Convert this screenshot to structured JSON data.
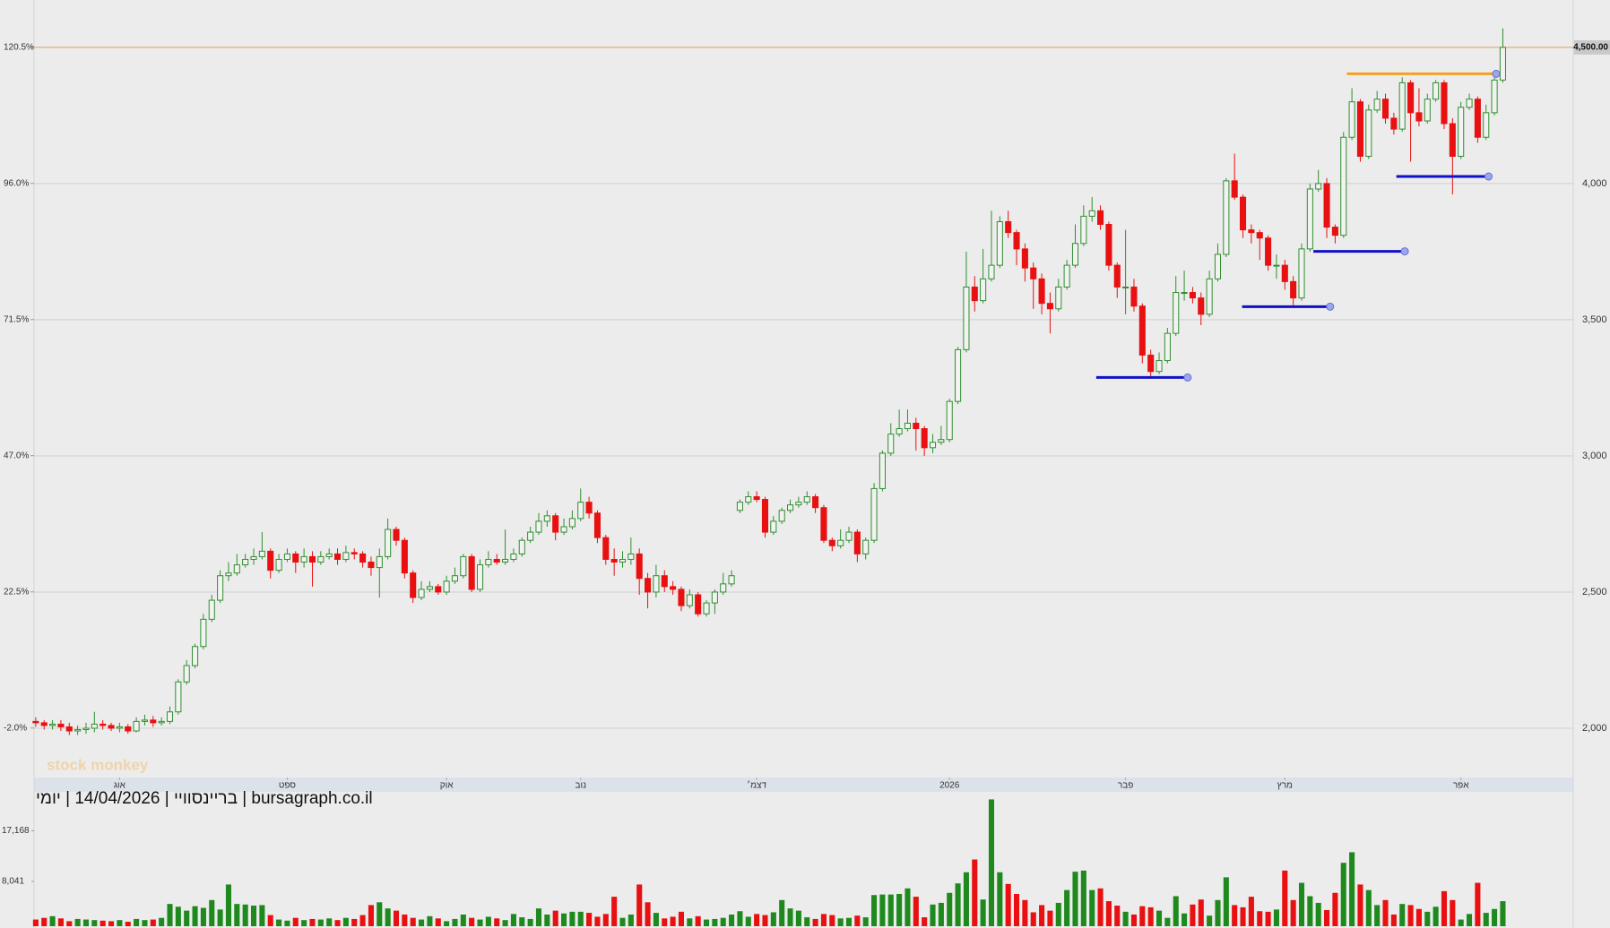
{
  "chart_data": {
    "type": "candlestick",
    "caption": "bursagraph.co.il | בריינסוויי | 14/04/2026 | יומי",
    "watermark": "stock monkey",
    "up_color": "#2f8f2f",
    "down_color": "#e81010",
    "grid": true,
    "xlim": [
      -0.2,
      183.4
    ],
    "xticks": [
      {
        "value": 10,
        "label": "אוג"
      },
      {
        "value": 30,
        "label": "ספט"
      },
      {
        "value": 49,
        "label": "אוק"
      },
      {
        "value": 65,
        "label": "נוב"
      },
      {
        "value": 86,
        "label": "דצמ׳"
      },
      {
        "value": 109,
        "label": "2026"
      },
      {
        "value": 130,
        "label": "פבר"
      },
      {
        "value": 149,
        "label": "מרץ"
      },
      {
        "value": 170,
        "label": "אפר"
      }
    ],
    "ylim": [
      1819,
      4674
    ],
    "yticks": [
      {
        "value": 2000,
        "label": "2,000"
      },
      {
        "value": 2500,
        "label": "2,500"
      },
      {
        "value": 3000,
        "label": "3,000"
      },
      {
        "value": 3500,
        "label": "3,500"
      },
      {
        "value": 4000,
        "label": "4,000"
      }
    ],
    "y2lim": [
      -10.9,
      129.0
    ],
    "y2ticks": [
      {
        "value": -2.0,
        "label": "-2.0%"
      },
      {
        "value": 22.5,
        "label": "22.5%"
      },
      {
        "value": 47.0,
        "label": "47.0%"
      },
      {
        "value": 71.5,
        "label": "71.5%"
      },
      {
        "value": 96.0,
        "label": "96.0%"
      },
      {
        "value": 120.5,
        "label": "120.5%"
      }
    ],
    "last_price": {
      "value": 4500,
      "label": "4,500.00",
      "color": "#e0a060"
    },
    "levels": [
      {
        "price": 3288,
        "x0": 126.5,
        "x1": 137.4,
        "color": "#1010c8"
      },
      {
        "price": 3548,
        "x0": 143.9,
        "x1": 154.4,
        "color": "#1010c8"
      },
      {
        "price": 3751,
        "x0": 152.4,
        "x1": 163.3,
        "color": "#1010c8"
      },
      {
        "price": 4026,
        "x0": 162.3,
        "x1": 173.3,
        "color": "#1010c8"
      },
      {
        "price": 4403,
        "x0": 156.4,
        "x1": 174.2,
        "color": "#f5a020"
      }
    ],
    "open": [
      2025,
      2020,
      2010,
      2015,
      2005,
      1990,
      1995,
      2000,
      2015,
      2010,
      2000,
      2005,
      1990,
      2025,
      2030,
      2020,
      2025,
      2060,
      2170,
      2230,
      2300,
      2400,
      2470,
      2560,
      2570,
      2600,
      2620,
      2630,
      2650,
      2580,
      2620,
      2640,
      2610,
      2630,
      2610,
      2630,
      2640,
      2620,
      2645,
      2640,
      2610,
      2590,
      2630,
      2730,
      2690,
      2570,
      2480,
      2510,
      2520,
      2500,
      2540,
      2560,
      2630,
      2510,
      2600,
      2620,
      2610,
      2620,
      2640,
      2690,
      2720,
      2760,
      2780,
      2720,
      2740,
      2770,
      2830,
      2790,
      2700,
      2620,
      2610,
      2620,
      2640,
      2550,
      2500,
      2560,
      2520,
      2510,
      2450,
      2490,
      2420,
      2460,
      2500,
      2530,
      2800,
      2830,
      2850,
      2840,
      2720,
      2760,
      2800,
      2820,
      2830,
      2850,
      2810,
      2690,
      2670,
      2690,
      2720,
      2640,
      2690,
      2880,
      3010,
      3080,
      3100,
      3120,
      3100,
      3030,
      3050,
      3060,
      3200,
      3390,
      3620,
      3570,
      3650,
      3700,
      3860,
      3820,
      3760,
      3690,
      3650,
      3560,
      3540,
      3620,
      3700,
      3780,
      3880,
      3900,
      3850,
      3700,
      3620,
      3620,
      3550,
      3370,
      3310,
      3350,
      3450,
      3600,
      3600,
      3580,
      3520,
      3650,
      3740,
      4010,
      3950,
      3830,
      3820,
      3800,
      3700,
      3700,
      3640,
      3580,
      3760,
      3980,
      4000,
      3840,
      3810,
      4170,
      4300,
      4100,
      4270,
      4310,
      4240,
      4200,
      4370,
      4260,
      4230,
      4310,
      4370,
      4220,
      4100,
      4280,
      4310,
      4170,
      4260,
      4380
    ],
    "high": [
      2040,
      2030,
      2030,
      2030,
      2020,
      2010,
      2020,
      2060,
      2030,
      2020,
      2020,
      2015,
      2040,
      2050,
      2045,
      2040,
      2080,
      2180,
      2250,
      2310,
      2420,
      2490,
      2580,
      2610,
      2640,
      2640,
      2660,
      2720,
      2660,
      2640,
      2660,
      2650,
      2660,
      2650,
      2650,
      2660,
      2660,
      2670,
      2660,
      2650,
      2630,
      2660,
      2770,
      2740,
      2700,
      2580,
      2540,
      2540,
      2530,
      2560,
      2590,
      2640,
      2640,
      2620,
      2650,
      2640,
      2730,
      2660,
      2700,
      2740,
      2790,
      2800,
      2790,
      2770,
      2800,
      2880,
      2850,
      2800,
      2710,
      2660,
      2650,
      2700,
      2660,
      2570,
      2600,
      2580,
      2540,
      2520,
      2510,
      2500,
      2470,
      2510,
      2570,
      2580,
      2840,
      2870,
      2870,
      2850,
      2780,
      2810,
      2840,
      2850,
      2870,
      2860,
      2820,
      2700,
      2730,
      2740,
      2730,
      2700,
      2900,
      3020,
      3120,
      3170,
      3170,
      3140,
      3110,
      3080,
      3110,
      3210,
      3400,
      3750,
      3660,
      3760,
      3900,
      3880,
      3900,
      3830,
      3780,
      3710,
      3670,
      3600,
      3650,
      3720,
      3850,
      3920,
      3950,
      3920,
      3860,
      3710,
      3830,
      3650,
      3560,
      3390,
      3380,
      3470,
      3660,
      3680,
      3620,
      3600,
      3680,
      3780,
      4020,
      4110,
      3960,
      3850,
      3830,
      3810,
      3740,
      3720,
      3660,
      3780,
      4000,
      4050,
      4020,
      3850,
      4190,
      4350,
      4310,
      4290,
      4340,
      4330,
      4260,
      4390,
      4380,
      4350,
      4330,
      4380,
      4380,
      4240,
      4300,
      4330,
      4320,
      4290,
      4400,
      4570
    ],
    "low": [
      2005,
      1995,
      1995,
      1990,
      1975,
      1975,
      1980,
      1985,
      1995,
      1990,
      1985,
      1980,
      1985,
      2010,
      2005,
      2010,
      2015,
      2050,
      2160,
      2220,
      2290,
      2390,
      2460,
      2540,
      2560,
      2590,
      2600,
      2620,
      2550,
      2570,
      2610,
      2570,
      2590,
      2520,
      2600,
      2620,
      2600,
      2610,
      2620,
      2590,
      2560,
      2480,
      2620,
      2670,
      2550,
      2460,
      2470,
      2500,
      2490,
      2490,
      2530,
      2550,
      2500,
      2500,
      2590,
      2600,
      2600,
      2610,
      2630,
      2680,
      2710,
      2740,
      2690,
      2710,
      2730,
      2760,
      2770,
      2680,
      2600,
      2560,
      2590,
      2600,
      2490,
      2440,
      2480,
      2500,
      2490,
      2430,
      2440,
      2410,
      2410,
      2420,
      2490,
      2520,
      2790,
      2820,
      2830,
      2700,
      2710,
      2750,
      2790,
      2810,
      2820,
      2790,
      2680,
      2650,
      2660,
      2680,
      2610,
      2620,
      2680,
      2870,
      3000,
      3070,
      3090,
      3020,
      3000,
      3010,
      3040,
      3050,
      3190,
      3380,
      3530,
      3560,
      3640,
      3690,
      3800,
      3700,
      3640,
      3540,
      3520,
      3450,
      3530,
      3610,
      3690,
      3770,
      3860,
      3830,
      3680,
      3580,
      3520,
      3530,
      3340,
      3290,
      3300,
      3340,
      3440,
      3570,
      3560,
      3480,
      3510,
      3640,
      3730,
      3940,
      3800,
      3780,
      3720,
      3680,
      3650,
      3610,
      3550,
      3570,
      3750,
      3970,
      3800,
      3780,
      3800,
      4160,
      4080,
      4090,
      4260,
      4220,
      4180,
      4190,
      4080,
      4210,
      4220,
      4300,
      4200,
      3960,
      4090,
      4270,
      4150,
      4160,
      4250,
      4370
    ],
    "close": [
      2020,
      2010,
      2015,
      2005,
      1990,
      1995,
      2000,
      2015,
      2010,
      2000,
      2005,
      1990,
      2025,
      2030,
      2020,
      2025,
      2060,
      2170,
      2230,
      2300,
      2400,
      2470,
      2560,
      2570,
      2600,
      2620,
      2630,
      2650,
      2580,
      2620,
      2640,
      2610,
      2630,
      2610,
      2630,
      2640,
      2620,
      2645,
      2640,
      2610,
      2590,
      2630,
      2730,
      2690,
      2570,
      2480,
      2510,
      2520,
      2500,
      2540,
      2560,
      2630,
      2510,
      2600,
      2620,
      2610,
      2620,
      2640,
      2690,
      2720,
      2760,
      2780,
      2720,
      2740,
      2770,
      2830,
      2790,
      2700,
      2620,
      2610,
      2620,
      2640,
      2550,
      2500,
      2560,
      2520,
      2510,
      2450,
      2490,
      2420,
      2460,
      2500,
      2530,
      2560,
      2830,
      2850,
      2840,
      2720,
      2760,
      2800,
      2820,
      2830,
      2850,
      2810,
      2690,
      2670,
      2690,
      2720,
      2640,
      2690,
      2880,
      3010,
      3080,
      3100,
      3120,
      3100,
      3030,
      3050,
      3060,
      3200,
      3390,
      3620,
      3570,
      3650,
      3700,
      3860,
      3820,
      3760,
      3690,
      3650,
      3560,
      3540,
      3620,
      3700,
      3780,
      3880,
      3900,
      3850,
      3700,
      3620,
      3620,
      3550,
      3370,
      3310,
      3350,
      3450,
      3600,
      3600,
      3580,
      3520,
      3650,
      3740,
      4010,
      3950,
      3830,
      3820,
      3800,
      3700,
      3700,
      3640,
      3580,
      3760,
      3980,
      4000,
      3840,
      3810,
      4170,
      4300,
      4100,
      4270,
      4310,
      4240,
      4200,
      4370,
      4260,
      4230,
      4310,
      4370,
      4220,
      4100,
      4280,
      4310,
      4170,
      4260,
      4380,
      4500
    ],
    "volume": [
      1200,
      1500,
      1800,
      1400,
      900,
      1300,
      1200,
      1100,
      1000,
      900,
      1100,
      800,
      1300,
      1100,
      1200,
      1500,
      4000,
      3500,
      2800,
      3600,
      3300,
      4700,
      3000,
      7500,
      4000,
      3900,
      3700,
      3800,
      2000,
      1200,
      1000,
      1500,
      1100,
      1300,
      1200,
      1400,
      1100,
      1500,
      1300,
      2000,
      3800,
      4300,
      3200,
      2800,
      2100,
      1500,
      1200,
      1800,
      1400,
      900,
      1300,
      2100,
      1500,
      1200,
      1700,
      1400,
      1100,
      2200,
      1600,
      1300,
      3200,
      2100,
      2800,
      2300,
      2600,
      2600,
      2400,
      1700,
      2200,
      5300,
      1500,
      2100,
      7500,
      4300,
      2400,
      1400,
      1700,
      2600,
      1400,
      1800,
      1200,
      1300,
      1500,
      2100,
      2700,
      1700,
      2200,
      2000,
      2500,
      4700,
      3200,
      2800,
      1600,
      1300,
      2200,
      2000,
      1400,
      1500,
      1900,
      1600,
      5600,
      5700,
      5700,
      5800,
      6800,
      5300,
      1600,
      3900,
      4200,
      6000,
      7700,
      9700,
      12000,
      4800,
      22800,
      9700,
      7600,
      5800,
      4700,
      2500,
      3800,
      2800,
      4200,
      6500,
      9800,
      10000,
      6500,
      6800,
      4500,
      3700,
      2600,
      2100,
      3600,
      3400,
      2800,
      1500,
      5400,
      2300,
      3900,
      4800,
      1900,
      4700,
      8800,
      3800,
      3400,
      5300,
      2700,
      2600,
      3000,
      10000,
      4700,
      7800,
      5400,
      4200,
      2900,
      6000,
      11400,
      13300,
      7500,
      6500,
      3800,
      4700,
      2100,
      4000,
      3800,
      3100,
      2600,
      3500,
      6300,
      4700,
      1200,
      2200,
      7800,
      2400,
      3100,
      4500
    ],
    "volume_ylim": [
      0,
      24000
    ],
    "volume_yticks": [
      {
        "value": 8041,
        "label": "8,041"
      },
      {
        "value": 17168,
        "label": "17,168"
      }
    ]
  }
}
